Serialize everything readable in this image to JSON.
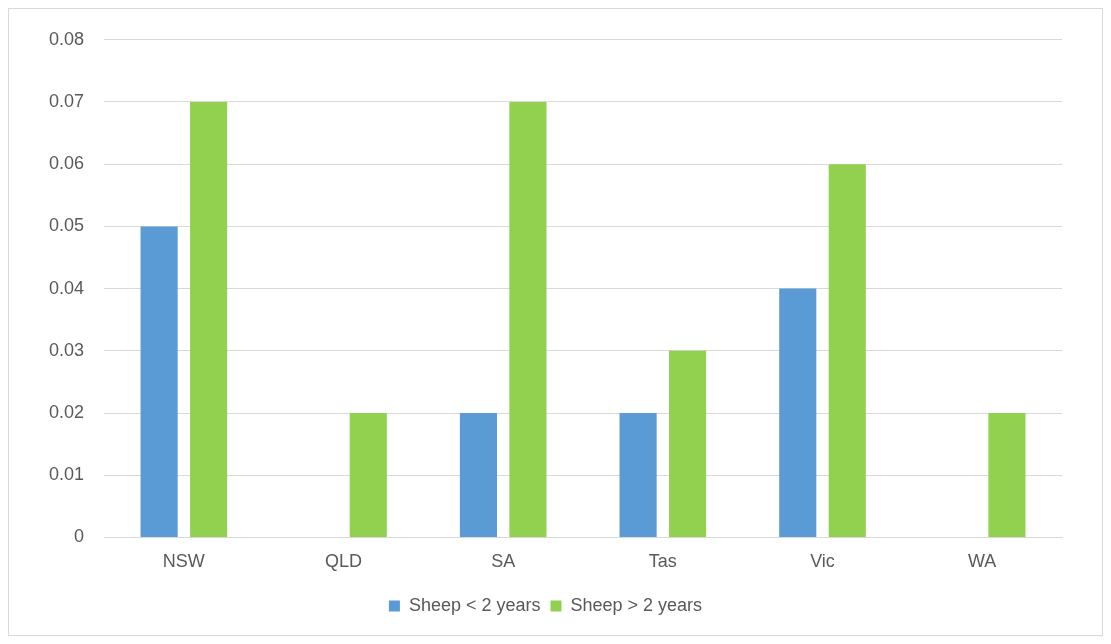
{
  "chart_data": {
    "type": "bar",
    "categories": [
      "NSW",
      "QLD",
      "SA",
      "Tas",
      "Vic",
      "WA"
    ],
    "series": [
      {
        "name": "Sheep < 2 years",
        "color": "#5b9bd5",
        "values": [
          0.05,
          0,
          0.02,
          0.02,
          0.04,
          0
        ]
      },
      {
        "name": "Sheep > 2 years",
        "color": "#92d050",
        "values": [
          0.07,
          0.02,
          0.07,
          0.03,
          0.06,
          0.02
        ]
      }
    ],
    "ylim": [
      0,
      0.08
    ],
    "yticks": [
      0,
      0.01,
      0.02,
      0.03,
      0.04,
      0.05,
      0.06,
      0.07,
      0.08
    ],
    "grid": "y",
    "legend": "bottom"
  }
}
